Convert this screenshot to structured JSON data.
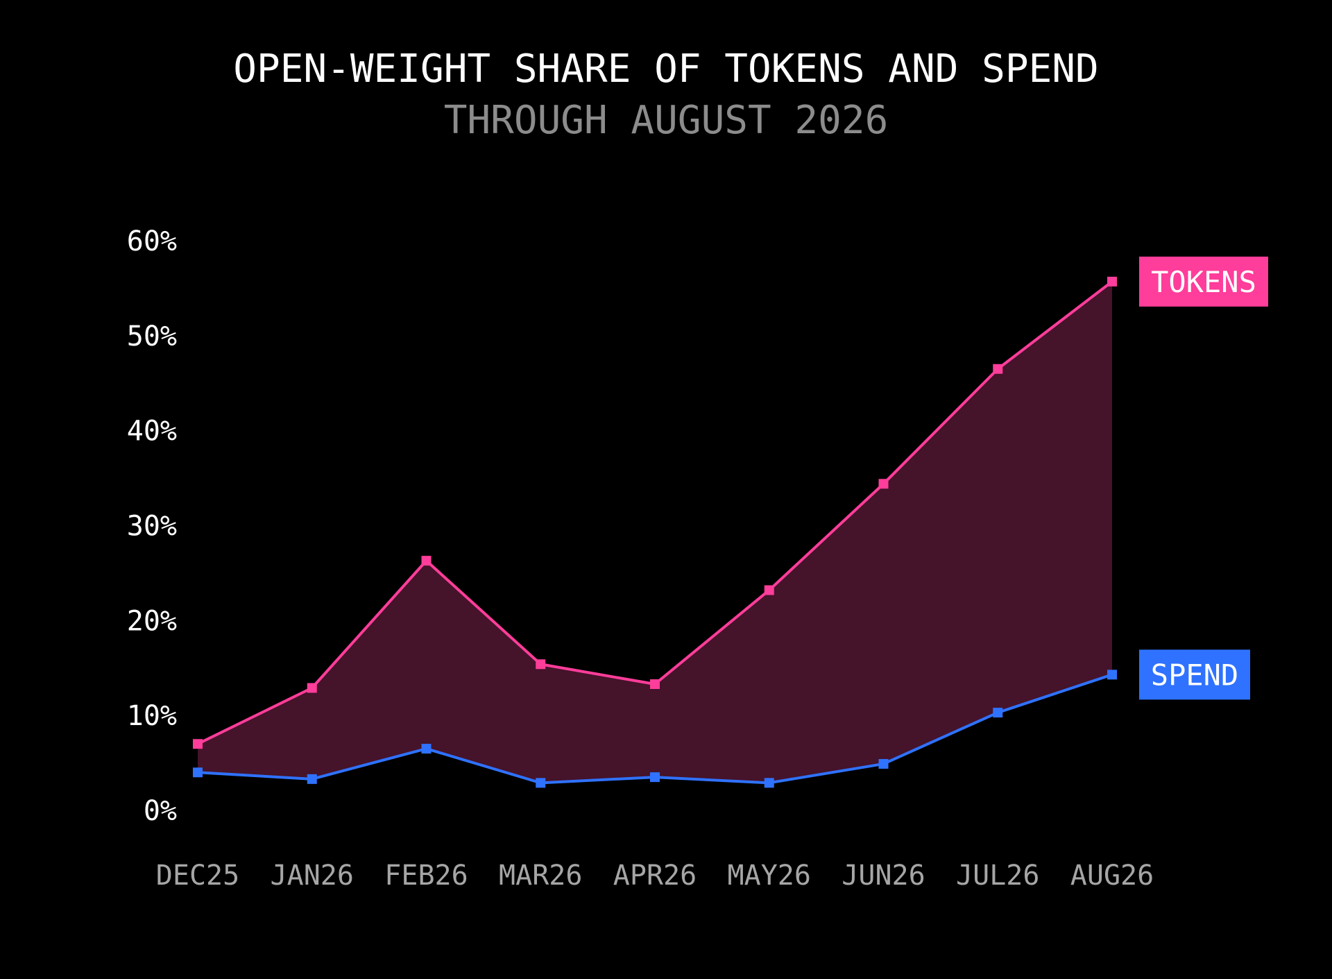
{
  "colors": {
    "background": "#000000",
    "tokens": "#ff3d9a",
    "spend": "#2f72ff",
    "fill": "#45132a",
    "title": "#ffffff",
    "subtitle": "#8c8c8c",
    "tick_x": "#a6a6a6",
    "tick_y": "#ffffff"
  },
  "chart_data": {
    "type": "line",
    "title": "OPEN-WEIGHT SHARE OF TOKENS AND SPEND",
    "subtitle": "THROUGH AUGUST 2026",
    "xlabel": "",
    "ylabel": "",
    "categories": [
      "DEC25",
      "JAN26",
      "FEB26",
      "MAR26",
      "APR26",
      "MAY26",
      "JUN26",
      "JUL26",
      "AUG26"
    ],
    "ylim": [
      0,
      60
    ],
    "yticks": [
      0,
      10,
      20,
      30,
      40,
      50,
      60
    ],
    "ytick_labels": [
      "0%",
      "10%",
      "20%",
      "30%",
      "40%",
      "50%",
      "60%"
    ],
    "grid": false,
    "legend": "end-of-line labels (right)",
    "shaded_between_series": true,
    "series": [
      {
        "name": "TOKENS",
        "color": "#ff3d9a",
        "values": [
          7.0,
          12.9,
          26.3,
          15.4,
          13.3,
          23.2,
          34.4,
          46.5,
          55.7
        ]
      },
      {
        "name": "SPEND",
        "color": "#2f72ff",
        "values": [
          4.0,
          3.3,
          6.5,
          2.9,
          3.5,
          2.9,
          4.9,
          10.3,
          14.3
        ]
      }
    ]
  }
}
